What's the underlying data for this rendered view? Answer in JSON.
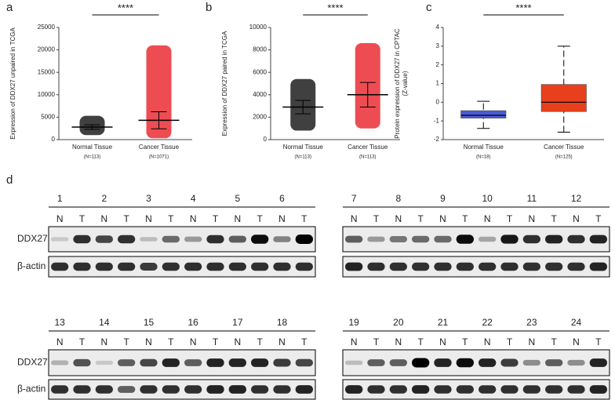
{
  "chart_data": [
    {
      "type": "dot",
      "panel_label": "a",
      "ylabel": [
        "Expression of DDX27 unpaired in TCGA"
      ],
      "significance": "****",
      "categories": [
        "Normal Tissue",
        "Cancer Tissue"
      ],
      "n_labels": [
        "(N=113)",
        "(N=1071)"
      ],
      "groups": [
        {
          "color": "#000000",
          "min": 1000,
          "max": 5300,
          "mean": 2800,
          "sd_low": 2300,
          "sd_high": 3300
        },
        {
          "color": "#e8101a",
          "min": 300,
          "max": 21000,
          "mean": 4300,
          "sd_low": 2400,
          "sd_high": 6200
        }
      ],
      "ylim": [
        0,
        25000
      ],
      "yticks": [
        0,
        5000,
        10000,
        15000,
        20000,
        25000
      ]
    },
    {
      "type": "dot",
      "panel_label": "b",
      "ylabel": [
        "Expression of DDX27 paired in TCGA"
      ],
      "significance": "****",
      "categories": [
        "Normal Tissue",
        "Cancer Tissue"
      ],
      "n_labels": [
        "(N=113)",
        "(N=113)"
      ],
      "groups": [
        {
          "color": "#000000",
          "min": 800,
          "max": 5400,
          "mean": 2900,
          "sd_low": 2300,
          "sd_high": 3500
        },
        {
          "color": "#e8101a",
          "min": 1000,
          "max": 8600,
          "mean": 4000,
          "sd_low": 2900,
          "sd_high": 5100
        }
      ],
      "ylim": [
        0,
        10000
      ],
      "yticks": [
        0,
        2000,
        4000,
        6000,
        8000,
        10000
      ]
    },
    {
      "type": "box",
      "panel_label": "c",
      "ylabel": [
        "Protein expression of DDX27 in CPTAC",
        "(Z-value)"
      ],
      "significance": "****",
      "categories": [
        "Normal Tissue",
        "Cancer Tissue"
      ],
      "n_labels": [
        "(N=18)",
        "(N=125)"
      ],
      "groups": [
        {
          "color": "#4a5bd6",
          "whisker_low": -1.4,
          "q1": -0.85,
          "median": -0.7,
          "q3": -0.45,
          "whisker_high": 0.05
        },
        {
          "color": "#e8401c",
          "whisker_low": -1.6,
          "q1": -0.5,
          "median": 0,
          "q3": 0.95,
          "whisker_high": 3.0
        }
      ],
      "ylim": [
        -2,
        4
      ],
      "yticks": [
        -2,
        -1,
        0,
        1,
        2,
        3,
        4
      ]
    }
  ],
  "blots": {
    "panel_label": "d",
    "lane_labels": [
      "N",
      "T"
    ],
    "row_labels": [
      "DDX27",
      "β-actin"
    ],
    "panels": [
      {
        "pairs": [
          "1",
          "2",
          "3",
          "4",
          "5",
          "6"
        ],
        "ddx27": [
          0.15,
          0.8,
          0.7,
          0.8,
          0.2,
          0.55,
          0.35,
          0.8,
          0.6,
          0.95,
          0.45,
          1
        ],
        "actin": [
          0.8,
          0.8,
          0.8,
          0.8,
          0.75,
          0.8,
          0.8,
          0.8,
          0.8,
          0.8,
          0.8,
          0.8
        ]
      },
      {
        "pairs": [
          "7",
          "8",
          "9",
          "10",
          "11",
          "12"
        ],
        "ddx27": [
          0.6,
          0.35,
          0.5,
          0.55,
          0.55,
          0.95,
          0.3,
          0.9,
          0.8,
          0.85,
          0.8,
          0.85
        ],
        "actin": [
          0.85,
          0.8,
          0.8,
          0.8,
          0.8,
          0.8,
          0.8,
          0.8,
          0.8,
          0.8,
          0.8,
          0.85
        ]
      },
      {
        "pairs": [
          "13",
          "14",
          "15",
          "16",
          "17",
          "18"
        ],
        "ddx27": [
          0.25,
          0.65,
          0.15,
          0.6,
          0.7,
          0.85,
          0.6,
          0.85,
          0.85,
          0.85,
          0.75,
          0.7
        ],
        "actin": [
          0.8,
          0.8,
          0.8,
          0.6,
          0.8,
          0.8,
          0.8,
          0.85,
          0.85,
          0.8,
          0.8,
          0.85
        ]
      },
      {
        "pairs": [
          "19",
          "20",
          "21",
          "22",
          "23",
          "24"
        ],
        "ddx27": [
          0.2,
          0.6,
          0.6,
          1,
          0.85,
          0.95,
          0.85,
          0.75,
          0.4,
          0.6,
          0.4,
          0.85
        ],
        "actin": [
          0.85,
          0.8,
          0.8,
          0.85,
          0.8,
          0.8,
          0.8,
          0.8,
          0.8,
          0.8,
          0.8,
          0.85
        ]
      }
    ]
  }
}
